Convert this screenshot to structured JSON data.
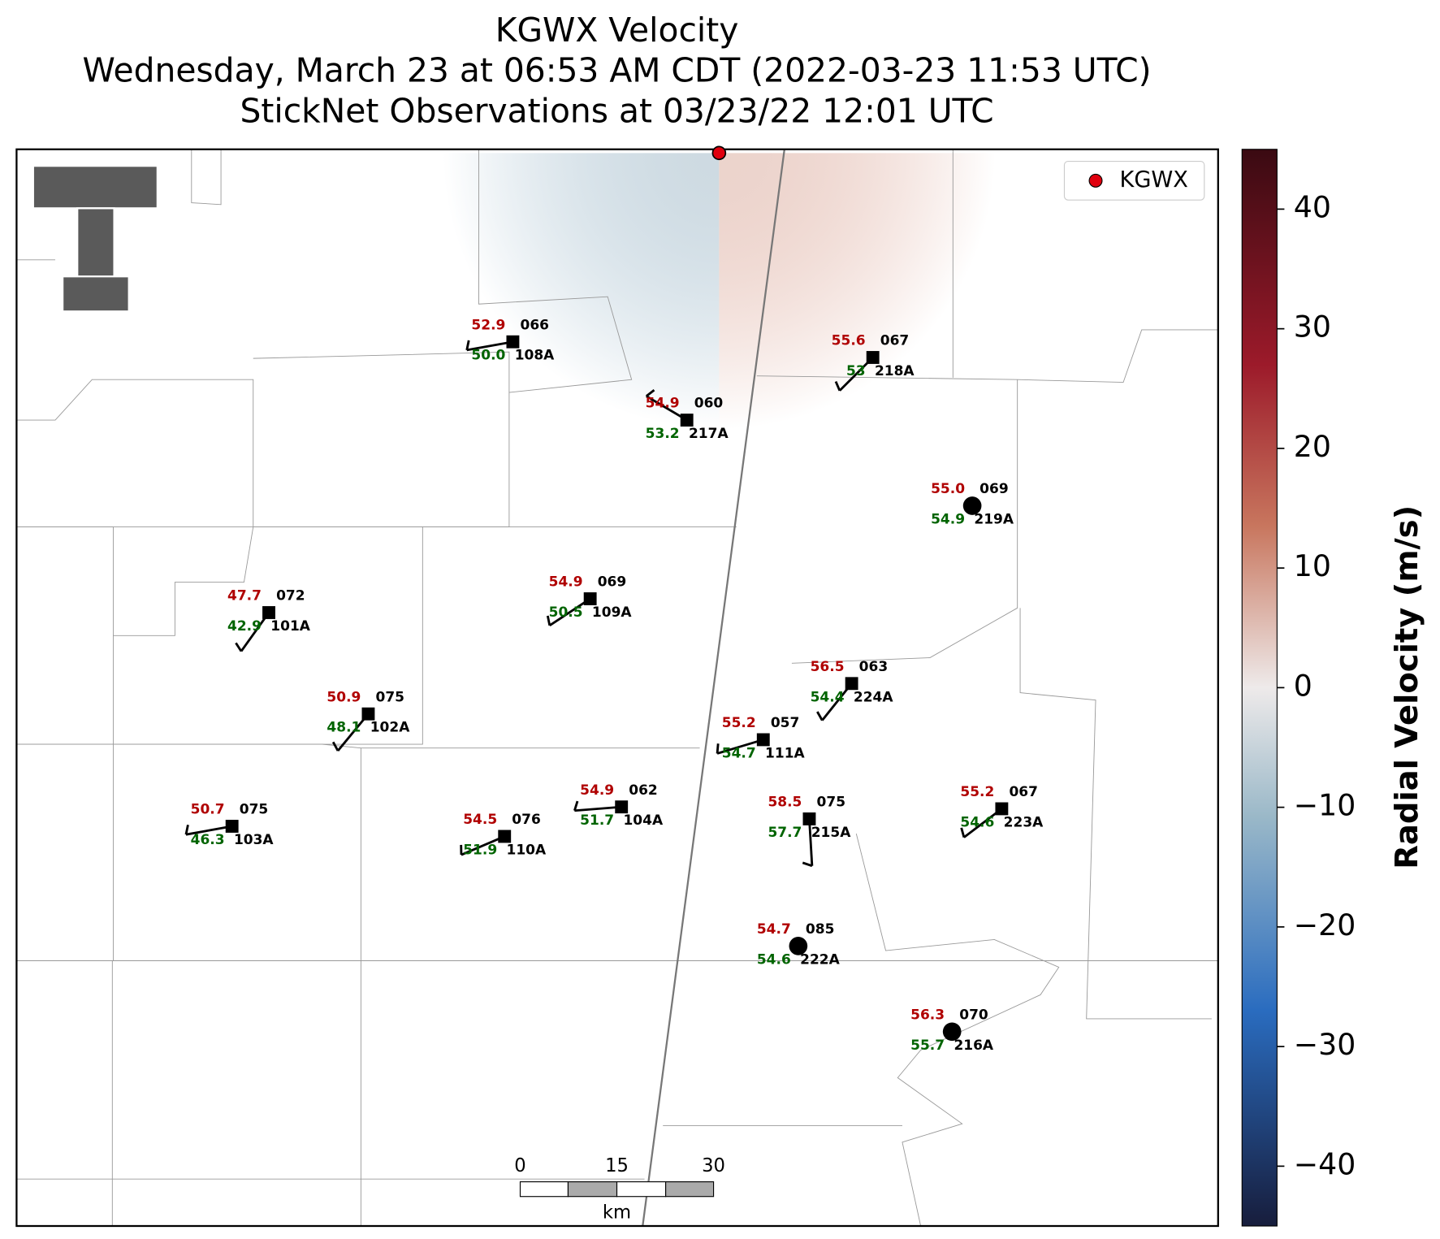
{
  "title": {
    "line1": "KGWX Velocity",
    "line2": "Wednesday, March 23 at 06:53 AM CDT (2022-03-23 11:53 UTC)",
    "line3": "StickNet Observations at 03/23/22 12:01 UTC"
  },
  "legend": {
    "label": "KGWX"
  },
  "colorbar": {
    "label": "Radial Velocity (m/s)",
    "lim": [
      -45,
      45
    ],
    "ticks": [
      {
        "value": -40,
        "label": "−40"
      },
      {
        "value": -30,
        "label": "−30"
      },
      {
        "value": -20,
        "label": "−20"
      },
      {
        "value": -10,
        "label": "−10"
      },
      0,
      10,
      20,
      30,
      40
    ]
  },
  "scale_bar": {
    "ticks": [
      "0",
      "15",
      "30"
    ],
    "unit": "km"
  },
  "stations": [
    {
      "id": "108A",
      "temp": "52.9",
      "dewpoint": "50.0",
      "code": "066"
    },
    {
      "id": "217A",
      "temp": "54.9",
      "dewpoint": "53.2",
      "code": "060"
    },
    {
      "id": "218A",
      "temp": "55.6",
      "dewpoint": "53",
      "code": "067"
    },
    {
      "id": "219A",
      "temp": "55.0",
      "dewpoint": "54.9",
      "code": "069"
    },
    {
      "id": "101A",
      "temp": "47.7",
      "dewpoint": "42.9",
      "code": "072"
    },
    {
      "id": "109A",
      "temp": "54.9",
      "dewpoint": "50.5",
      "code": "069"
    },
    {
      "id": "102A",
      "temp": "50.9",
      "dewpoint": "48.1",
      "code": "075"
    },
    {
      "id": "224A",
      "temp": "56.5",
      "dewpoint": "54.4",
      "code": "063"
    },
    {
      "id": "111A",
      "temp": "55.2",
      "dewpoint": "54.7",
      "code": "057"
    },
    {
      "id": "103A",
      "temp": "50.7",
      "dewpoint": "46.3",
      "code": "075"
    },
    {
      "id": "110A",
      "temp": "54.5",
      "dewpoint": "51.9",
      "code": "076"
    },
    {
      "id": "104A",
      "temp": "54.9",
      "dewpoint": "51.7",
      "code": "062"
    },
    {
      "id": "215A",
      "temp": "58.5",
      "dewpoint": "57.7",
      "code": "075"
    },
    {
      "id": "223A",
      "temp": "55.2",
      "dewpoint": "54.6",
      "code": "067"
    },
    {
      "id": "222A",
      "temp": "54.7",
      "dewpoint": "54.6",
      "code": "085"
    },
    {
      "id": "216A",
      "temp": "56.3",
      "dewpoint": "55.7",
      "code": "070"
    }
  ]
}
